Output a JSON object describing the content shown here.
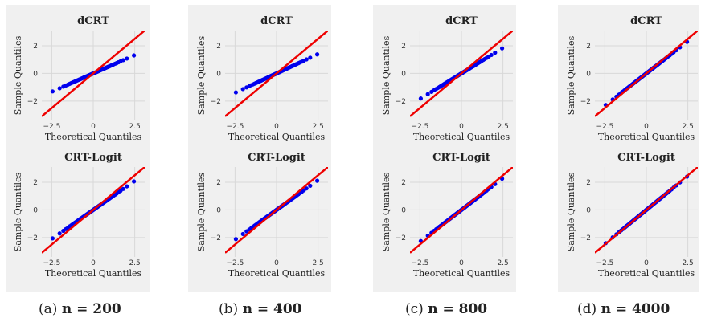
{
  "chart_data": [
    {
      "column": 0,
      "row": 0,
      "type": "scatter",
      "title": "dCRT",
      "xlabel": "Theoretical Quantiles",
      "ylabel": "Sample Quantiles",
      "xlim": [
        -3.1,
        3.1
      ],
      "ylim": [
        -3.4,
        3.1
      ],
      "xticks": [
        -2.5,
        0.0,
        2.5
      ],
      "yticks": [
        2,
        0,
        -2
      ],
      "series": [
        {
          "kind": "points",
          "color": "#0000ee",
          "slope": 0.53,
          "x_range": [
            -3.1,
            3.1
          ]
        },
        {
          "kind": "reference-line",
          "color": "#ee0000",
          "slope": 1.0,
          "intercept": 0.0
        }
      ]
    },
    {
      "column": 0,
      "row": 1,
      "type": "scatter",
      "title": "CRT-Logit",
      "xlabel": "Theoretical Quantiles",
      "ylabel": "Sample Quantiles",
      "xlim": [
        -3.1,
        3.1
      ],
      "ylim": [
        -3.4,
        3.1
      ],
      "xticks": [
        -2.5,
        0.0,
        2.5
      ],
      "yticks": [
        2,
        0,
        -2
      ],
      "series": [
        {
          "kind": "points",
          "color": "#0000ee",
          "slope": 0.84,
          "x_range": [
            -3.1,
            3.1
          ]
        },
        {
          "kind": "reference-line",
          "color": "#ee0000",
          "slope": 1.0,
          "intercept": 0.0
        }
      ]
    },
    {
      "column": 1,
      "row": 0,
      "type": "scatter",
      "title": "dCRT",
      "xlabel": "Theoretical Quantiles",
      "ylabel": "Sample Quantiles",
      "xlim": [
        -3.1,
        3.1
      ],
      "ylim": [
        -3.4,
        3.1
      ],
      "xticks": [
        -2.5,
        0.0,
        2.5
      ],
      "yticks": [
        2,
        0,
        -2
      ],
      "series": [
        {
          "kind": "points",
          "color": "#0000ee",
          "slope": 0.56,
          "x_range": [
            -3.1,
            3.1
          ]
        },
        {
          "kind": "reference-line",
          "color": "#ee0000",
          "slope": 1.0,
          "intercept": 0.0
        }
      ]
    },
    {
      "column": 1,
      "row": 1,
      "type": "scatter",
      "title": "CRT-Logit",
      "xlabel": "Theoretical Quantiles",
      "ylabel": "Sample Quantiles",
      "xlim": [
        -3.1,
        3.1
      ],
      "ylim": [
        -3.4,
        3.1
      ],
      "xticks": [
        -2.5,
        0.0,
        2.5
      ],
      "yticks": [
        2,
        0,
        -2
      ],
      "series": [
        {
          "kind": "points",
          "color": "#0000ee",
          "slope": 0.86,
          "x_range": [
            -3.1,
            3.1
          ]
        },
        {
          "kind": "reference-line",
          "color": "#ee0000",
          "slope": 1.0,
          "intercept": 0.0
        }
      ]
    },
    {
      "column": 2,
      "row": 0,
      "type": "scatter",
      "title": "dCRT",
      "xlabel": "Theoretical Quantiles",
      "ylabel": "Sample Quantiles",
      "xlim": [
        -3.1,
        3.1
      ],
      "ylim": [
        -3.4,
        3.1
      ],
      "xticks": [
        -2.5,
        0.0,
        2.5
      ],
      "yticks": [
        2,
        0,
        -2
      ],
      "series": [
        {
          "kind": "points",
          "color": "#0000ee",
          "slope": 0.74,
          "x_range": [
            -3.1,
            3.1
          ]
        },
        {
          "kind": "reference-line",
          "color": "#ee0000",
          "slope": 1.0,
          "intercept": 0.0
        }
      ]
    },
    {
      "column": 2,
      "row": 1,
      "type": "scatter",
      "title": "CRT-Logit",
      "xlabel": "Theoretical Quantiles",
      "ylabel": "Sample Quantiles",
      "xlim": [
        -3.1,
        3.1
      ],
      "ylim": [
        -3.4,
        3.1
      ],
      "xticks": [
        -2.5,
        0.0,
        2.5
      ],
      "yticks": [
        2,
        0,
        -2
      ],
      "series": [
        {
          "kind": "points",
          "color": "#0000ee",
          "slope": 0.92,
          "x_range": [
            -3.1,
            3.1
          ]
        },
        {
          "kind": "reference-line",
          "color": "#ee0000",
          "slope": 1.0,
          "intercept": 0.0
        }
      ]
    },
    {
      "column": 3,
      "row": 0,
      "type": "scatter",
      "title": "dCRT",
      "xlabel": "Theoretical Quantiles",
      "ylabel": "Sample Quantiles",
      "xlim": [
        -3.1,
        3.1
      ],
      "ylim": [
        -3.4,
        3.1
      ],
      "xticks": [
        -2.5,
        0.0,
        2.5
      ],
      "yticks": [
        2,
        0,
        -2
      ],
      "series": [
        {
          "kind": "points",
          "color": "#0000ee",
          "slope": 0.93,
          "x_range": [
            -3.1,
            3.1
          ]
        },
        {
          "kind": "reference-line",
          "color": "#ee0000",
          "slope": 1.0,
          "intercept": 0.0
        }
      ]
    },
    {
      "column": 3,
      "row": 1,
      "type": "scatter",
      "title": "CRT-Logit",
      "xlabel": "Theoretical Quantiles",
      "ylabel": "Sample Quantiles",
      "xlim": [
        -3.1,
        3.1
      ],
      "ylim": [
        -3.4,
        3.1
      ],
      "xticks": [
        -2.5,
        0.0,
        2.5
      ],
      "yticks": [
        2,
        0,
        -2
      ],
      "series": [
        {
          "kind": "points",
          "color": "#0000ee",
          "slope": 0.98,
          "x_range": [
            -3.1,
            3.1
          ]
        },
        {
          "kind": "reference-line",
          "color": "#ee0000",
          "slope": 1.0,
          "intercept": 0.0
        }
      ]
    }
  ],
  "captions": [
    {
      "prefix": "(a) ",
      "label": "n = 200"
    },
    {
      "prefix": "(b) ",
      "label": "n = 400"
    },
    {
      "prefix": "(c) ",
      "label": "n = 800"
    },
    {
      "prefix": "(d) ",
      "label": "n = 4000"
    }
  ]
}
